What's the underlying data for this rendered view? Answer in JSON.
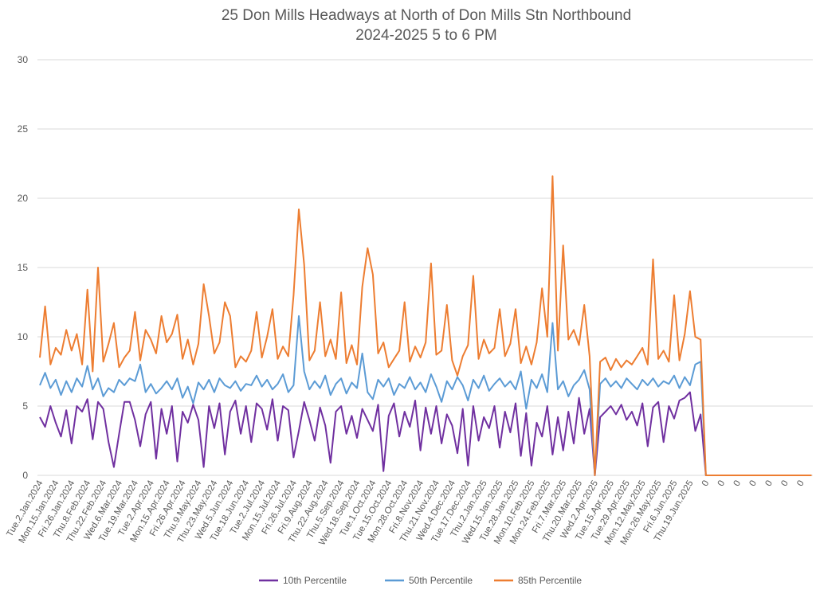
{
  "chart_data": {
    "type": "line",
    "title": [
      "25 Don Mills Headways at North of Don Mills Stn Northbound",
      "2024-2025 5 to 6 PM"
    ],
    "xlabel": "",
    "ylabel": "",
    "ylim": [
      0,
      30
    ],
    "yticks": [
      0,
      5,
      10,
      15,
      20,
      25,
      30
    ],
    "grid": true,
    "legend_position": "bottom",
    "points_per_tick_label": 3,
    "x_tick_labels": [
      "Tue.2.Jan.2024",
      "Mon.15.Jan.2024",
      "Fri.26.Jan.2024",
      "Thu.8.Feb.2024",
      "Thu.22.Feb.2024",
      "Wed.6.Mar.2024",
      "Tue.19.Mar.2024",
      "Tue.2.Apr.2024",
      "Mon.15.Apr.2024",
      "Fri.26.Apr.2024",
      "Thu.9.May.2024",
      "Thu.23.May.2024",
      "Wed.5.Jun.2024",
      "Tue.18.Jun.2024",
      "Tue.2.Jul.2024",
      "Mon.15.Jul.2024",
      "Fri.26.Jul.2024",
      "Fri.9.Aug.2024",
      "Thu.22.Aug.2024",
      "Thu.5.Sep.2024",
      "Wed.18.Sep.2024",
      "Tue.1.Oct.2024",
      "Tue.15.Oct.2024",
      "Mon.28.Oct.2024",
      "Fri.8.Nov.2024",
      "Thu.21.Nov.2024",
      "Wed.4.Dec.2024",
      "Tue.17.Dec.2024",
      "Thu.2.Jan.2025",
      "Wed.15.Jan.2025",
      "Tue.28.Jan.2025",
      "Mon.10.Feb.2025",
      "Mon.24.Feb.2025",
      "Fri.7.Mar.2025",
      "Thu.20.Mar.2025",
      "Wed.2.Apr.2025",
      "Tue.15.Apr.2025",
      "Tue.29.Apr.2025",
      "Mon.12.May.2025",
      "Mon.26.May.2025",
      "Fri.6.Jun.2025",
      "Thu.19.Jun.2025",
      "0",
      "0",
      "0",
      "0",
      "0",
      "0",
      "0"
    ],
    "series": [
      {
        "name": "10th Percentile",
        "color": "#7030a0",
        "values": [
          4.2,
          3.5,
          5.0,
          3.8,
          2.8,
          4.7,
          2.3,
          5.0,
          4.6,
          5.5,
          2.6,
          5.3,
          4.8,
          2.4,
          0.6,
          3.0,
          5.3,
          5.3,
          4.0,
          2.1,
          4.4,
          5.3,
          1.2,
          4.8,
          3.0,
          5.0,
          1.0,
          4.6,
          3.8,
          5.1,
          4.0,
          0.6,
          5.0,
          3.4,
          5.2,
          1.5,
          4.6,
          5.4,
          3.0,
          5.0,
          2.4,
          5.2,
          4.8,
          3.3,
          5.5,
          2.5,
          5.0,
          4.7,
          1.3,
          3.2,
          5.3,
          4.0,
          2.5,
          4.9,
          3.6,
          0.9,
          4.6,
          5.0,
          3.0,
          4.3,
          2.7,
          4.8,
          4.0,
          3.2,
          5.1,
          0.3,
          4.3,
          5.2,
          2.8,
          4.6,
          3.5,
          5.4,
          1.8,
          4.9,
          3.0,
          5.0,
          2.3,
          4.4,
          3.6,
          1.6,
          4.8,
          0.7,
          5.0,
          2.5,
          4.2,
          3.4,
          5.0,
          2.0,
          4.6,
          3.1,
          5.2,
          1.4,
          4.5,
          0.7,
          3.8,
          2.8,
          5.0,
          1.5,
          4.2,
          1.8,
          4.6,
          2.3,
          5.6,
          3.0,
          4.8,
          0,
          4.2,
          4.6,
          5.0,
          4.4,
          5.1,
          4.0,
          4.6,
          3.6,
          5.2,
          2.1,
          4.9,
          5.3,
          2.4,
          5.0,
          4.1,
          5.4,
          5.6,
          6.0,
          3.2,
          4.4,
          0,
          0,
          0,
          0,
          0,
          0,
          0,
          0,
          0,
          0,
          0,
          0,
          0,
          0,
          0,
          0,
          0,
          0,
          0,
          0,
          0
        ]
      },
      {
        "name": "50th Percentile",
        "color": "#5b9bd5",
        "values": [
          6.5,
          7.4,
          6.3,
          6.9,
          5.8,
          6.8,
          6.0,
          7.0,
          6.4,
          7.9,
          6.2,
          7.0,
          5.7,
          6.3,
          6.0,
          6.9,
          6.5,
          7.0,
          6.8,
          8.0,
          6.0,
          6.6,
          5.9,
          6.3,
          6.8,
          6.2,
          7.0,
          5.6,
          6.4,
          5.2,
          6.7,
          6.2,
          6.9,
          6.0,
          7.0,
          6.5,
          6.3,
          6.8,
          6.1,
          6.6,
          6.5,
          7.2,
          6.4,
          6.9,
          6.2,
          6.6,
          7.3,
          6.0,
          6.5,
          11.5,
          7.5,
          6.2,
          6.8,
          6.3,
          7.2,
          5.8,
          6.6,
          7.0,
          5.9,
          6.7,
          6.3,
          8.8,
          6.0,
          5.5,
          6.9,
          6.4,
          7.0,
          5.8,
          6.6,
          6.3,
          7.1,
          6.2,
          6.7,
          6.0,
          7.3,
          6.4,
          5.3,
          6.8,
          6.2,
          7.1,
          6.5,
          5.4,
          6.9,
          6.3,
          7.2,
          6.1,
          6.6,
          7.0,
          6.4,
          6.8,
          6.2,
          7.5,
          4.8,
          6.9,
          6.3,
          7.3,
          6.0,
          11.0,
          6.2,
          6.8,
          5.7,
          6.5,
          6.9,
          7.6,
          6.2,
          0,
          6.6,
          7.0,
          6.4,
          6.8,
          6.3,
          7.0,
          6.6,
          6.2,
          6.9,
          6.5,
          7.0,
          6.4,
          6.8,
          6.6,
          7.2,
          6.3,
          7.1,
          6.5,
          8.0,
          8.2,
          0,
          0,
          0,
          0,
          0,
          0,
          0,
          0,
          0,
          0,
          0,
          0,
          0,
          0,
          0,
          0,
          0,
          0,
          0,
          0,
          0
        ]
      },
      {
        "name": "85th Percentile",
        "color": "#ed7d31",
        "values": [
          8.5,
          12.2,
          8.0,
          9.2,
          8.7,
          10.5,
          9.0,
          10.2,
          8.0,
          13.4,
          7.5,
          15.0,
          8.2,
          9.5,
          11.0,
          7.8,
          8.5,
          9.0,
          11.8,
          8.3,
          10.5,
          9.8,
          8.8,
          11.5,
          9.6,
          10.2,
          11.6,
          8.4,
          9.8,
          8.0,
          9.5,
          13.8,
          11.5,
          8.8,
          9.6,
          12.5,
          11.5,
          7.8,
          8.6,
          8.2,
          9.0,
          11.8,
          8.5,
          10.0,
          12.0,
          8.4,
          9.3,
          8.6,
          13.0,
          19.2,
          15.2,
          8.3,
          9.0,
          12.5,
          8.6,
          9.8,
          8.4,
          13.2,
          8.1,
          9.4,
          8.0,
          13.6,
          16.4,
          14.5,
          8.8,
          9.6,
          7.8,
          8.4,
          9.0,
          12.5,
          8.2,
          9.3,
          8.5,
          9.6,
          15.3,
          8.7,
          9.0,
          12.3,
          8.3,
          7.2,
          8.6,
          9.4,
          14.4,
          8.4,
          9.8,
          8.8,
          9.2,
          12.0,
          8.6,
          9.5,
          12.0,
          8.1,
          9.3,
          8.0,
          9.6,
          13.5,
          10.0,
          21.6,
          9.0,
          16.6,
          9.8,
          10.5,
          9.4,
          12.3,
          8.6,
          0,
          8.2,
          8.5,
          7.6,
          8.4,
          7.8,
          8.3,
          8.0,
          8.6,
          9.2,
          8.0,
          15.6,
          8.4,
          9.0,
          8.2,
          13.0,
          8.3,
          10.2,
          13.3,
          10.0,
          9.8,
          0,
          0,
          0,
          0,
          0,
          0,
          0,
          0,
          0,
          0,
          0,
          0,
          0,
          0,
          0,
          0,
          0,
          0,
          0,
          0,
          0
        ]
      }
    ]
  }
}
